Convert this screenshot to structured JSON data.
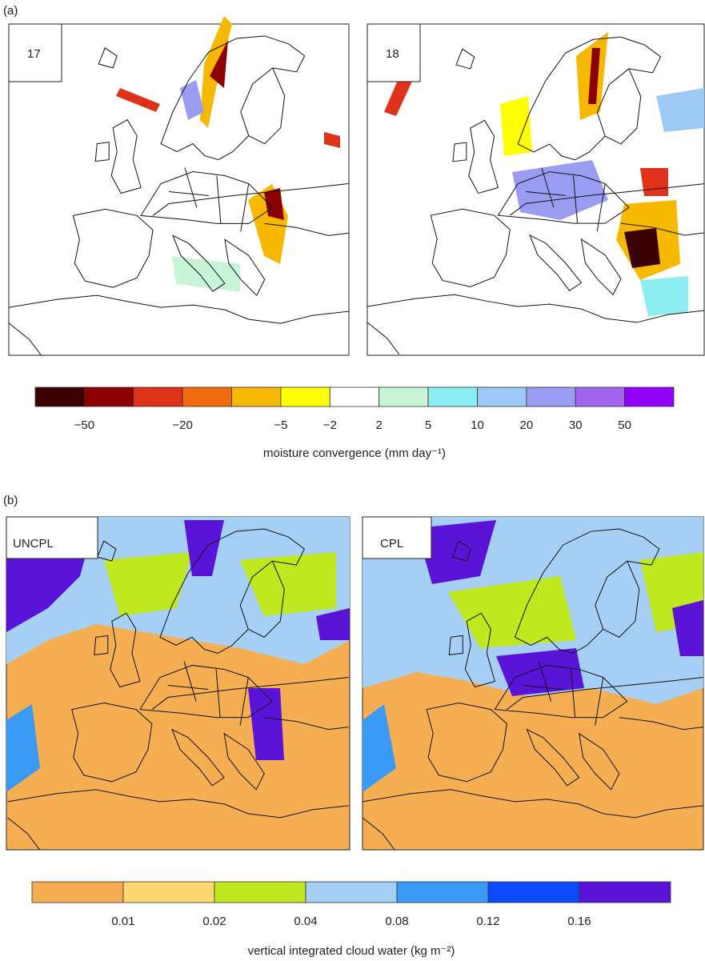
{
  "panel_a": {
    "label": "(a)",
    "maps": [
      {
        "label": "17"
      },
      {
        "label": "18"
      }
    ],
    "colorbar": {
      "colors": [
        "#3a0000",
        "#8b0000",
        "#e0321a",
        "#f26a10",
        "#f7b800",
        "#ffff00",
        "#ffffff",
        "#c8f5d8",
        "#8ceef0",
        "#9ccaf5",
        "#9a9cf2",
        "#9f63ee",
        "#8f00ff"
      ],
      "tick_labels": [
        "−50",
        null,
        "−20",
        null,
        "−5",
        "−2",
        "2",
        "5",
        "10",
        "20",
        "30",
        "50"
      ],
      "title": "moisture convergence (mm day⁻¹)"
    }
  },
  "panel_b": {
    "label": "(b)",
    "maps": [
      {
        "label": "UNCPL"
      },
      {
        "label": "CPL"
      }
    ],
    "colorbar": {
      "colors": [
        "#f5ae52",
        "#fdd870",
        "#c0e81e",
        "#a6cff5",
        "#3a9af5",
        "#0a4af8",
        "#5a14d8"
      ],
      "tick_labels": [
        "0.01",
        "0.02",
        "0.04",
        "0.08",
        "0.12",
        "0.16"
      ],
      "title": "vertical integrated cloud water (kg m⁻²)"
    }
  }
}
